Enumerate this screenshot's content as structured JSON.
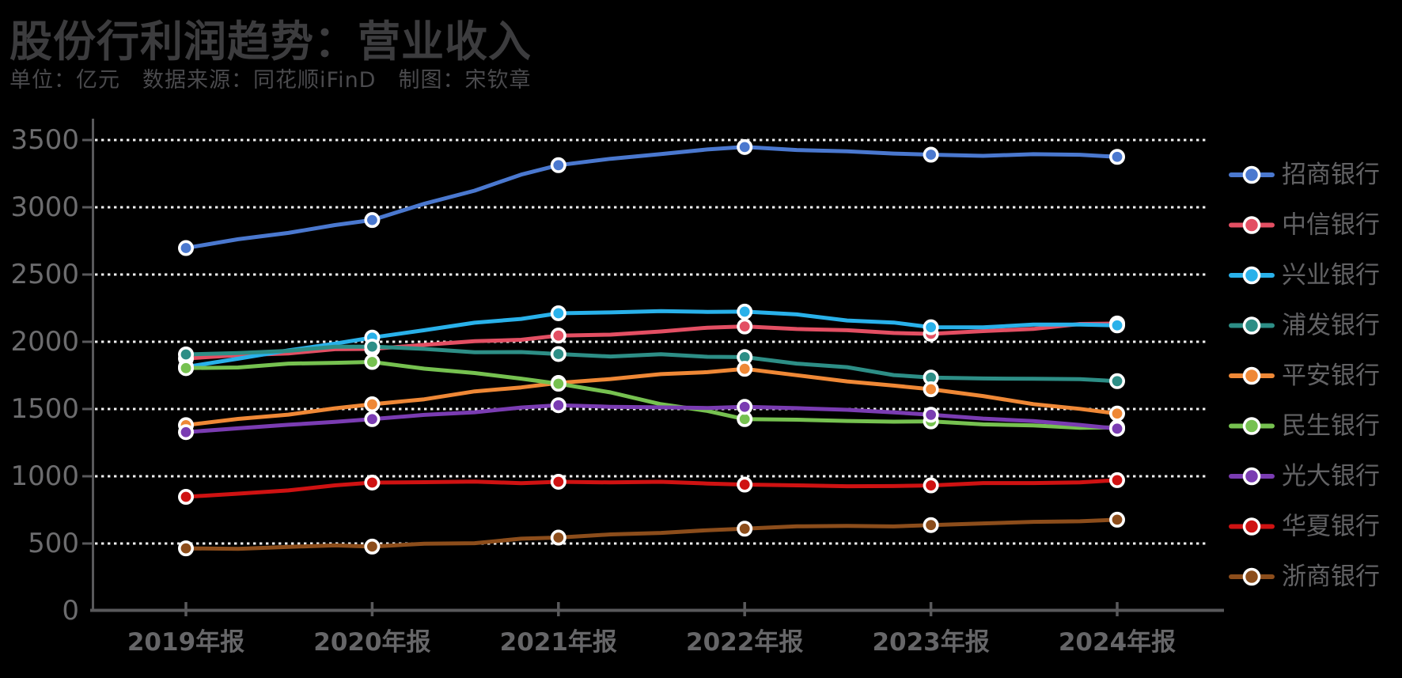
{
  "title": "股份行利润趋势：营业收入",
  "subtitle": "单位：亿元　数据来源：同花顺iFinD　制图：宋钦章",
  "chart_data": {
    "type": "line",
    "title": "股份行利润趋势：营业收入",
    "unit": "亿元",
    "data_source": "同花顺iFinD",
    "author_credit": "宋钦章",
    "categories": [
      "2019年报",
      "2020年报",
      "2021年报",
      "2022年报",
      "2023年报",
      "2024年报"
    ],
    "series": [
      {
        "id": "cmb",
        "name": "招商银行",
        "color": "#4a78cf",
        "values": [
          2697,
          2905,
          3313,
          3448,
          3391,
          3375
        ]
      },
      {
        "id": "citic",
        "name": "中信银行",
        "color": "#e34f63",
        "values": [
          1876,
          1947,
          2046,
          2114,
          2059,
          2136
        ]
      },
      {
        "id": "cib",
        "name": "兴业银行",
        "color": "#29b1ea",
        "values": [
          1813,
          2031,
          2212,
          2224,
          2108,
          2122
        ]
      },
      {
        "id": "spdb",
        "name": "浦发银行",
        "color": "#2d8e86",
        "values": [
          1906,
          1964,
          1909,
          1886,
          1734,
          1707
        ]
      },
      {
        "id": "pab",
        "name": "平安银行",
        "color": "#ef8836",
        "values": [
          1380,
          1535,
          1694,
          1799,
          1647,
          1466
        ]
      },
      {
        "id": "cmbc",
        "name": "民生银行",
        "color": "#76c150",
        "values": [
          1804,
          1850,
          1688,
          1425,
          1408,
          1363
        ]
      },
      {
        "id": "ceb",
        "name": "光大银行",
        "color": "#7a3cb2",
        "values": [
          1328,
          1425,
          1528,
          1516,
          1457,
          1354
        ]
      },
      {
        "id": "hxb",
        "name": "华夏银行",
        "color": "#cf1212",
        "values": [
          847,
          953,
          959,
          938,
          932,
          971
        ]
      },
      {
        "id": "czb",
        "name": "浙商银行",
        "color": "#8c4d1b",
        "values": [
          464,
          477,
          544,
          610,
          637,
          677
        ]
      }
    ],
    "xlabel": "",
    "ylabel": "",
    "ylim": [
      0,
      3500
    ],
    "yticks": [
      0,
      500,
      1000,
      1500,
      2000,
      2500,
      3000,
      3500
    ],
    "grid": "horizontal-dotted-white",
    "legend_position": "right",
    "style": {
      "background": "#000000",
      "axis_color": "#59595b",
      "gridline_color": "#efefef",
      "y_label_color": "#6c6c6e",
      "x_label_color": "#666668",
      "legend_text_color": "#626264",
      "marker_ring_color": "#ffffff"
    }
  }
}
